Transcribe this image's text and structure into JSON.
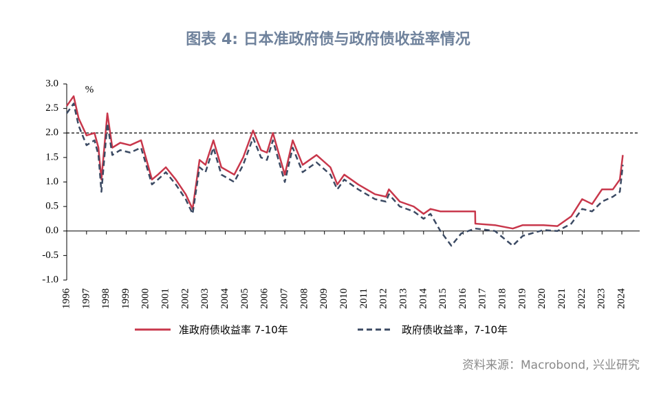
{
  "chart_data": {
    "type": "line",
    "title": "图表 4:  日本准政府债与政府债收益率情况",
    "ylabel": "%",
    "source": "资料来源：Macrobond, 兴业研究",
    "x": [
      1996.0,
      1996.35,
      1996.6,
      1997.0,
      1997.4,
      1997.6,
      1997.75,
      1998.05,
      1998.3,
      1998.7,
      1999.2,
      1999.75,
      2000.3,
      2000.6,
      2001.0,
      2001.5,
      2002.0,
      2002.35,
      2002.7,
      2003.0,
      2003.4,
      2003.8,
      2004.45,
      2004.9,
      2005.4,
      2005.8,
      2006.1,
      2006.4,
      2007.0,
      2007.4,
      2007.9,
      2008.6,
      2009.3,
      2009.65,
      2010.0,
      2010.7,
      2011.55,
      2012.1,
      2012.25,
      2012.8,
      2013.5,
      2014.0,
      2014.35,
      2014.85,
      2015.4,
      2015.9,
      2016.6,
      2016.61,
      2017.6,
      2018.5,
      2019.0,
      2020.05,
      2020.75,
      2021.45,
      2022.0,
      2022.5,
      2023.0,
      2023.55,
      2023.9,
      2024.05
    ],
    "series": [
      {
        "name": "准政府债收益率 7-10年",
        "color": "#c8374b",
        "dashed": false,
        "values": [
          2.55,
          2.75,
          2.3,
          1.95,
          2.0,
          1.7,
          1.05,
          2.4,
          1.7,
          1.8,
          1.75,
          1.85,
          1.05,
          1.15,
          1.3,
          1.05,
          0.75,
          0.45,
          1.45,
          1.35,
          1.85,
          1.3,
          1.15,
          1.5,
          2.05,
          1.65,
          1.6,
          2.0,
          1.15,
          1.85,
          1.35,
          1.55,
          1.3,
          0.95,
          1.15,
          0.95,
          0.75,
          0.7,
          0.85,
          0.6,
          0.5,
          0.35,
          0.45,
          0.4,
          0.4,
          0.4,
          0.4,
          0.15,
          0.12,
          0.05,
          0.12,
          0.12,
          0.1,
          0.3,
          0.65,
          0.55,
          0.85,
          0.85,
          1.05,
          1.55
        ]
      },
      {
        "name": "政府债收益率，7-10年",
        "color": "#3b4a63",
        "dashed": true,
        "values": [
          2.4,
          2.6,
          2.15,
          1.75,
          1.85,
          1.55,
          0.8,
          2.2,
          1.55,
          1.65,
          1.6,
          1.7,
          0.95,
          1.05,
          1.2,
          0.95,
          0.65,
          0.35,
          1.3,
          1.2,
          1.7,
          1.15,
          1.0,
          1.35,
          1.9,
          1.5,
          1.45,
          1.85,
          1.0,
          1.7,
          1.2,
          1.4,
          1.15,
          0.85,
          1.05,
          0.85,
          0.65,
          0.6,
          0.75,
          0.5,
          0.4,
          0.25,
          0.35,
          0.0,
          -0.3,
          -0.05,
          0.05,
          0.05,
          0.0,
          -0.3,
          -0.1,
          0.02,
          0.0,
          0.15,
          0.45,
          0.4,
          0.6,
          0.7,
          0.8,
          1.35
        ]
      }
    ],
    "reference_line": 2,
    "xlim": [
      1996,
      2024.9
    ],
    "xticks": [
      1996,
      1997,
      1998,
      1999,
      2000,
      2001,
      2002,
      2003,
      2004,
      2005,
      2006,
      2007,
      2008,
      2009,
      2010,
      2011,
      2012,
      2013,
      2014,
      2015,
      2016,
      2017,
      2018,
      2019,
      2020,
      2021,
      2022,
      2023,
      2024
    ],
    "ylim": [
      -1,
      3
    ],
    "yticks": [
      {
        "value": -1,
        "label": "-1.0"
      },
      -0.5,
      {
        "value": 0,
        "label": "0.0"
      },
      0.5,
      {
        "value": 1,
        "label": "1.0"
      },
      1.5,
      {
        "value": 2,
        "label": "2.0"
      },
      2.5,
      {
        "value": 3,
        "label": "3.0"
      }
    ],
    "grid": false
  }
}
